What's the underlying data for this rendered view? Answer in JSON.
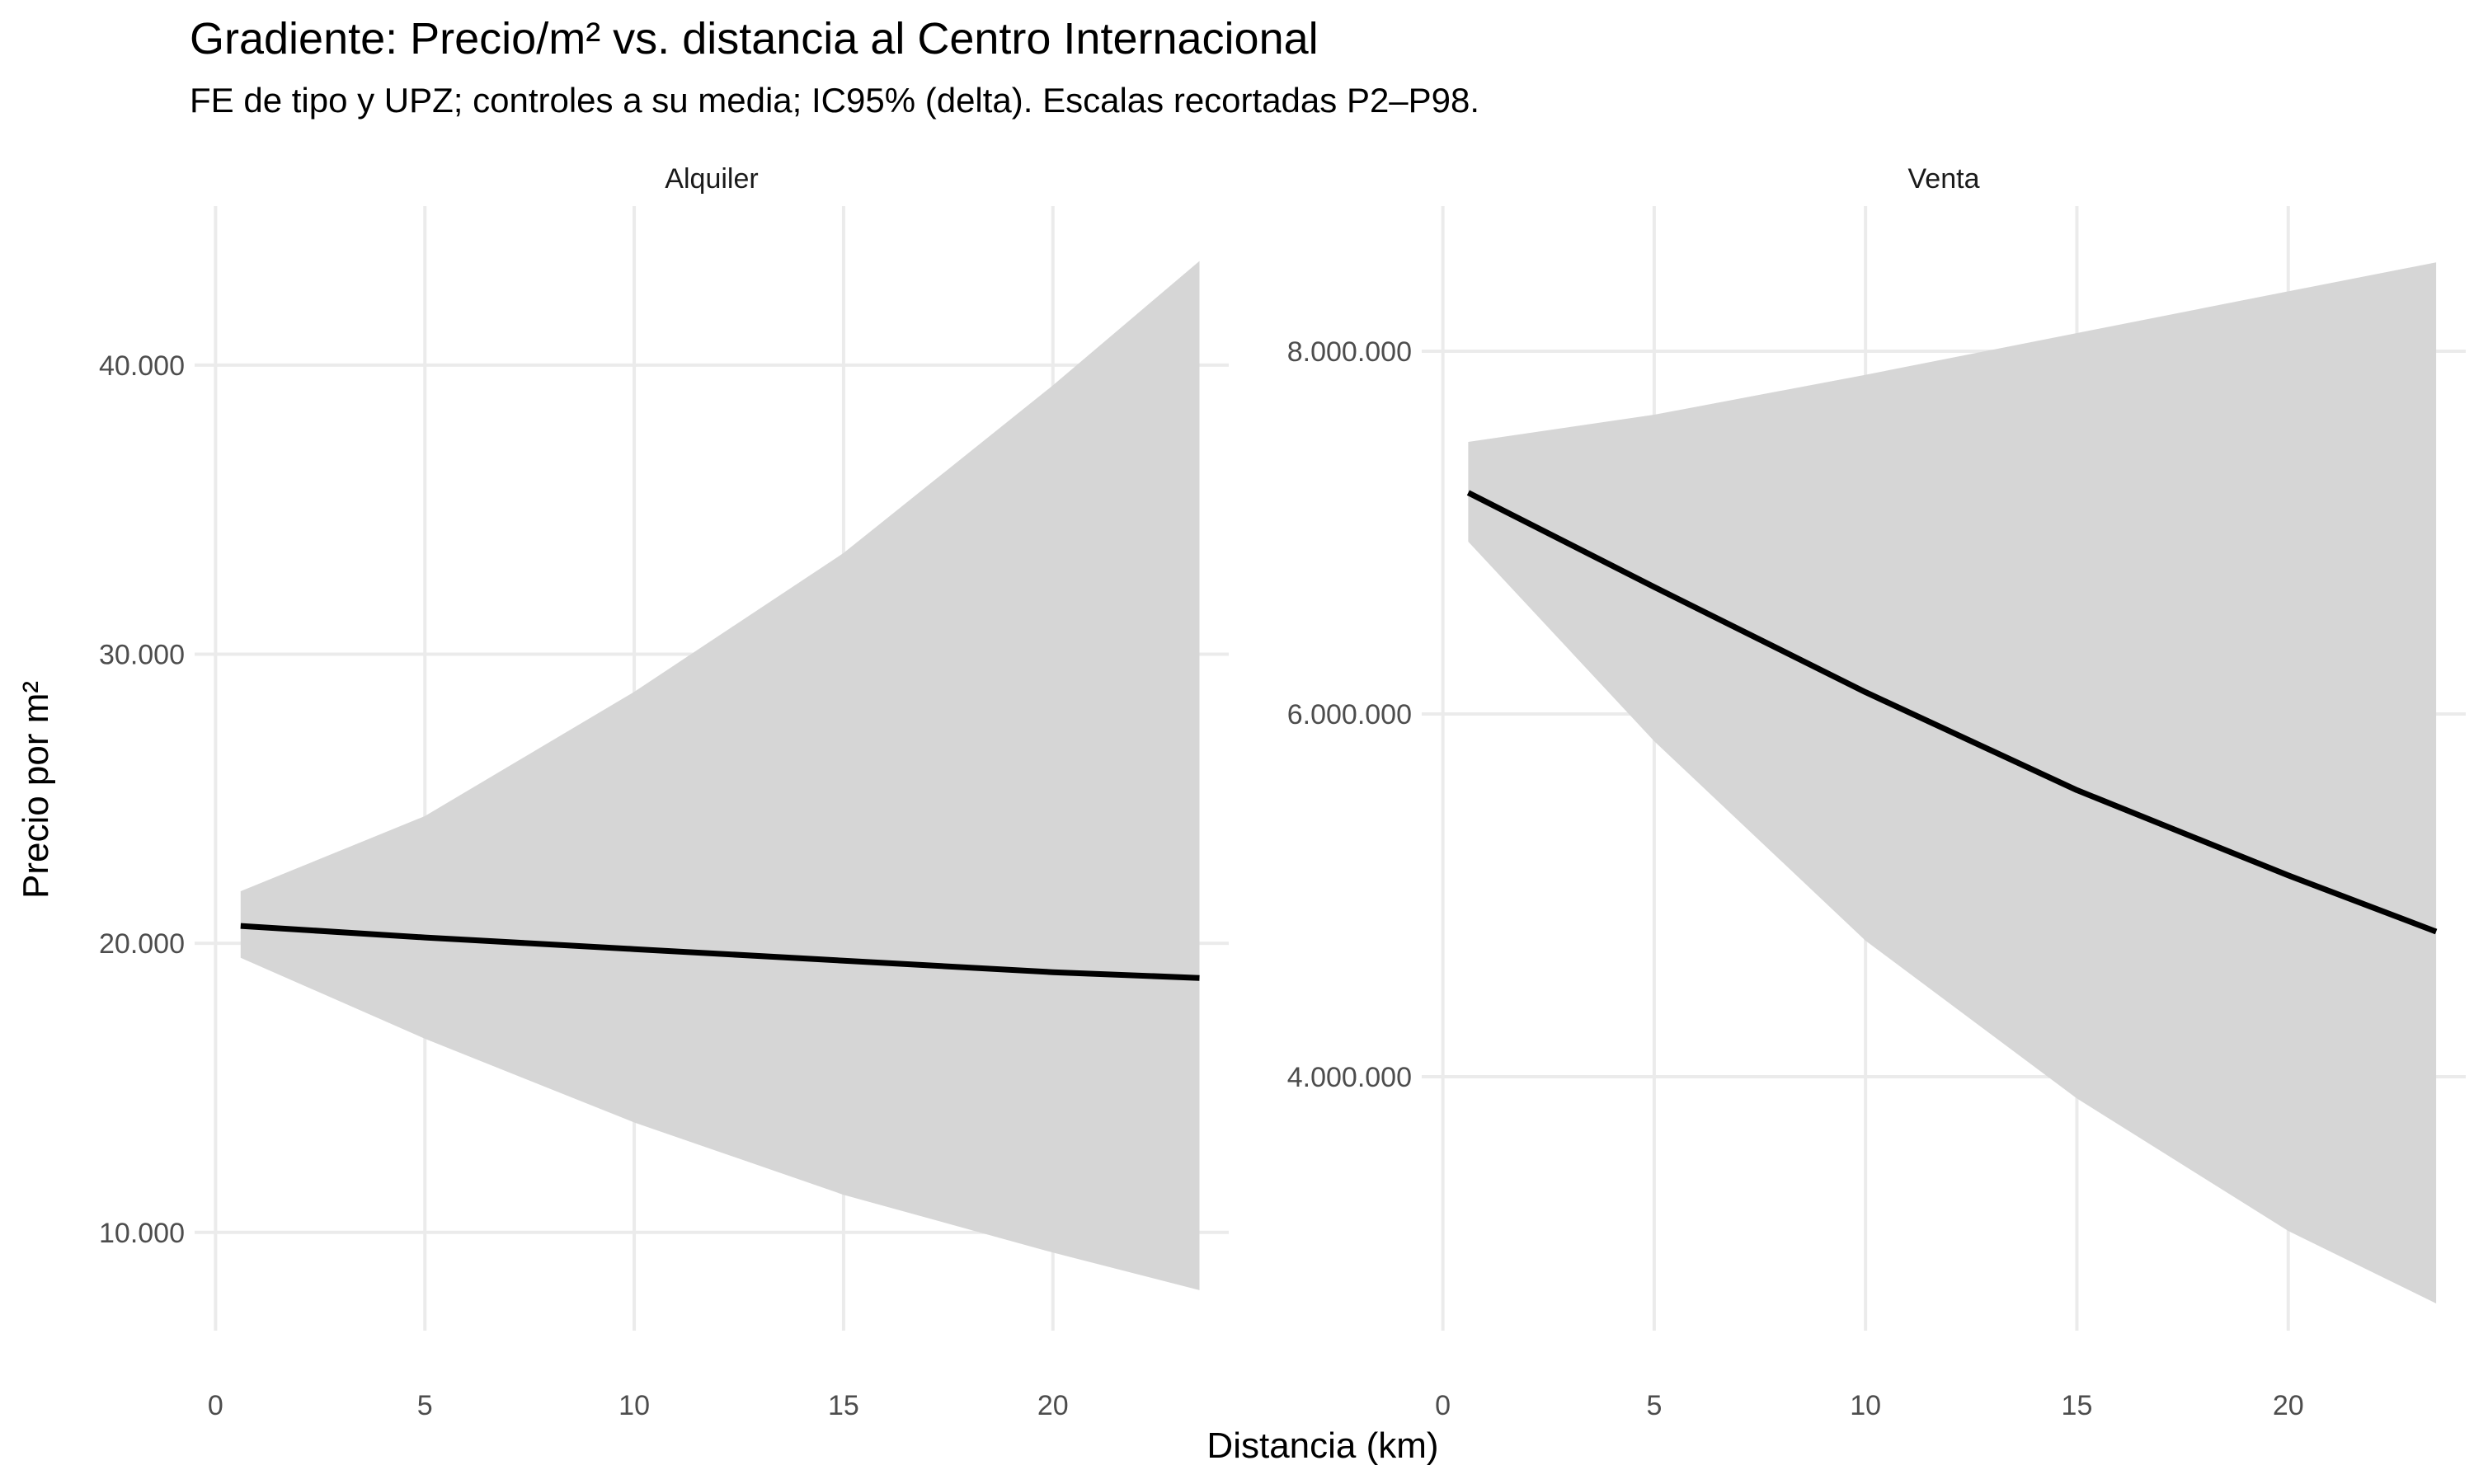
{
  "chart_data": {
    "type": "line",
    "title": "Gradiente: Precio/m² vs. distancia al Centro Internacional",
    "subtitle": "FE de tipo y UPZ; controles a su media; IC95% (delta). Escalas recortadas P2–P98.",
    "xlabel": "Distancia (km)",
    "ylabel": "Precio por m²",
    "grid": true,
    "legend": "none",
    "facets": [
      {
        "label": "Alquiler",
        "xlim": [
          -0.5,
          24.2
        ],
        "ylim": [
          6600,
          45500
        ],
        "x_ticks": [
          0,
          5,
          10,
          15,
          20
        ],
        "x_tick_labels": [
          "0",
          "5",
          "10",
          "15",
          "20"
        ],
        "y_ticks": [
          10000,
          20000,
          30000,
          40000
        ],
        "y_tick_labels": [
          "10.000",
          "20.000",
          "30.000",
          "40.000"
        ],
        "x": [
          0.6,
          5,
          10,
          15,
          20,
          23.5
        ],
        "y": [
          20600,
          20200,
          19800,
          19400,
          19000,
          18800
        ],
        "lower": [
          19500,
          16700,
          13800,
          11300,
          9300,
          8000
        ],
        "upper": [
          21800,
          24400,
          28700,
          33500,
          39300,
          43600
        ]
      },
      {
        "label": "Venta",
        "xlim": [
          -0.5,
          24.2
        ],
        "ylim": [
          2600000,
          8800000
        ],
        "x_ticks": [
          0,
          5,
          10,
          15,
          20
        ],
        "x_tick_labels": [
          "0",
          "5",
          "10",
          "15",
          "20"
        ],
        "y_ticks": [
          4000000,
          6000000,
          8000000
        ],
        "y_tick_labels": [
          "4.000.000",
          "6.000.000",
          "8.000.000"
        ],
        "x": [
          0.6,
          5,
          10,
          15,
          20,
          23.5
        ],
        "y": [
          7220000,
          6700000,
          6120000,
          5580000,
          5110000,
          4800000
        ],
        "lower": [
          6950000,
          5850000,
          4750000,
          3880000,
          3150000,
          2750000
        ],
        "upper": [
          7500000,
          7650000,
          7870000,
          8100000,
          8330000,
          8490000
        ]
      }
    ]
  }
}
